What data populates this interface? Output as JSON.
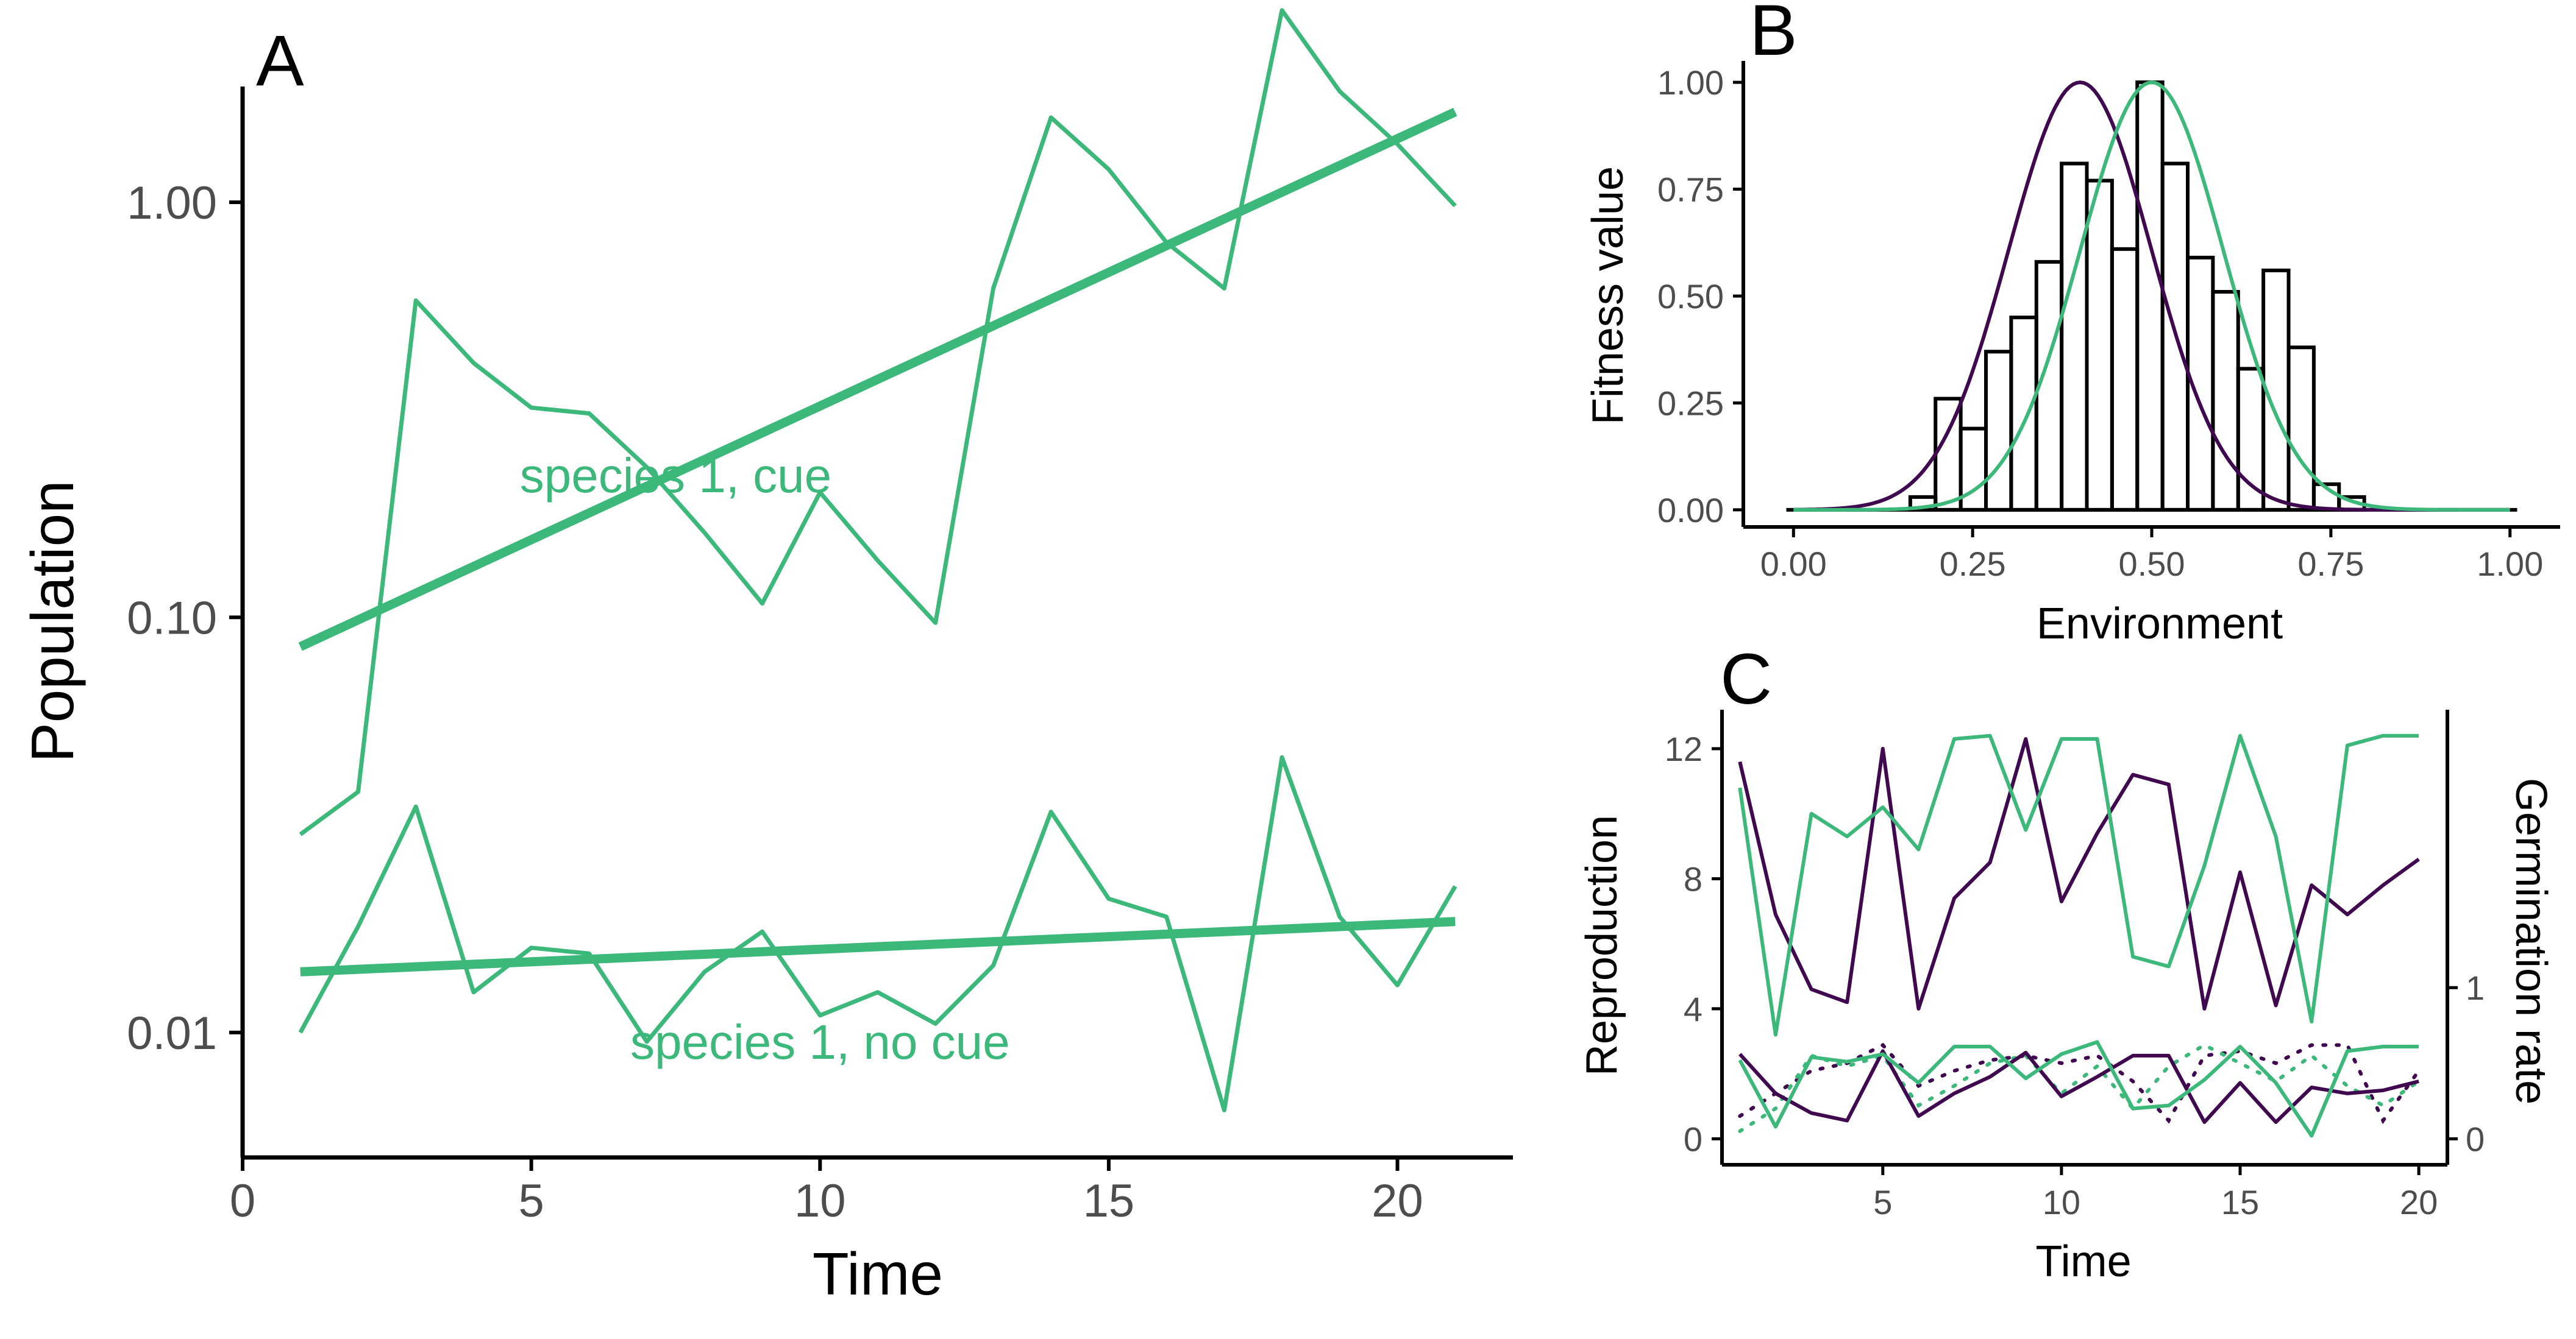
{
  "colors": {
    "species_1": "#3bb87a",
    "species_2": "#40094f",
    "axis": "#000000",
    "tick_label": "#4d4d4d"
  },
  "chart_data": [
    {
      "panel": "A",
      "type": "line",
      "yscale": "log10",
      "xlabel": "Time",
      "ylabel": "Population",
      "xlim": [
        0,
        22
      ],
      "ylim": [
        0.005,
        1.9
      ],
      "x_ticks": [
        0,
        5,
        10,
        15,
        20
      ],
      "x_tick_labels": [
        "0",
        "5",
        "10",
        "15",
        "20"
      ],
      "y_ticks": [
        0.01,
        0.1,
        1
      ],
      "y_tick_labels": [
        "0.01",
        "0.10",
        "1.00"
      ],
      "x": [
        1,
        2,
        3,
        4,
        5,
        6,
        7,
        8,
        9,
        10,
        11,
        12,
        13,
        14,
        15,
        16,
        17,
        18,
        19,
        20,
        21
      ],
      "series": [
        {
          "key": "cue",
          "label": "species 1, cue",
          "label_at": [
            7.5,
            0.22
          ],
          "values": [
            0.03,
            0.038,
            0.58,
            0.41,
            0.32,
            0.31,
            0.23,
            0.16,
            0.108,
            0.2,
            0.137,
            0.097,
            0.62,
            1.6,
            1.2,
            0.8,
            0.62,
            2.9,
            1.85,
            1.38,
            0.98
          ],
          "trend": [
            [
              1,
              0.085
            ],
            [
              21,
              1.65
            ]
          ]
        },
        {
          "key": "no_cue",
          "label": "species 1, no cue",
          "label_at": [
            10,
            0.0095
          ],
          "values": [
            0.01,
            0.018,
            0.035,
            0.0125,
            0.016,
            0.0155,
            0.0095,
            0.014,
            0.0175,
            0.011,
            0.0125,
            0.0105,
            0.0145,
            0.034,
            0.021,
            0.019,
            0.0065,
            0.046,
            0.019,
            0.013,
            0.0225
          ],
          "trend": [
            [
              1,
              0.014
            ],
            [
              21,
              0.0185
            ]
          ]
        }
      ]
    },
    {
      "panel": "B",
      "type": "histogram",
      "xlabel": "Environment",
      "ylabel": "Fitness value",
      "xlim": [
        -0.07,
        1.07
      ],
      "ylim": [
        -0.04,
        1.05
      ],
      "x_ticks": [
        0,
        0.25,
        0.5,
        0.75,
        1
      ],
      "x_tick_labels": [
        "0.00",
        "0.25",
        "0.50",
        "0.75",
        "1.00"
      ],
      "y_ticks": [
        0,
        0.25,
        0.5,
        0.75,
        1
      ],
      "y_tick_labels": [
        "0.00",
        "0.25",
        "0.50",
        "0.75",
        "1.00"
      ],
      "histogram": {
        "bin_start": 0.163,
        "bin_width": 0.0352,
        "heights": [
          0.03,
          0.26,
          0.19,
          0.37,
          0.45,
          0.58,
          0.81,
          0.77,
          0.61,
          1.0,
          0.81,
          0.59,
          0.51,
          0.33,
          0.56,
          0.38,
          0.06,
          0.03
        ],
        "baseline": [
          -0.01,
          1.01
        ]
      },
      "curves": [
        {
          "species": "species_2",
          "mean": 0.4,
          "sd": 0.1
        },
        {
          "species": "species_1",
          "mean": 0.5,
          "sd": 0.1
        }
      ]
    },
    {
      "panel": "C",
      "type": "line",
      "xlabel": "Time",
      "ylabel": "Reproduction",
      "y2label": "Germination rate",
      "xlim": [
        0.5,
        20.8
      ],
      "ylim": [
        -0.8,
        13.2
      ],
      "y2_per_y": 4.65,
      "x_ticks": [
        5,
        10,
        15,
        20
      ],
      "x_tick_labels": [
        "5",
        "10",
        "15",
        "20"
      ],
      "y_ticks": [
        0,
        4,
        8,
        12
      ],
      "y_tick_labels": [
        "0",
        "4",
        "8",
        "12"
      ],
      "y2_ticks": [
        0,
        1
      ],
      "y2_tick_labels": [
        "0",
        "1"
      ],
      "x": [
        1,
        2,
        3,
        4,
        5,
        6,
        7,
        8,
        9,
        10,
        11,
        12,
        13,
        14,
        15,
        16,
        17,
        18,
        19,
        20
      ],
      "reproduction": [
        {
          "species": "species_2",
          "values": [
            11.6,
            6.9,
            4.6,
            4.2,
            12.0,
            4.0,
            7.4,
            8.5,
            12.3,
            7.3,
            9.4,
            11.2,
            10.9,
            4.0,
            8.2,
            4.1,
            7.8,
            6.9,
            7.8,
            8.6
          ]
        },
        {
          "species": "species_1",
          "values": [
            10.8,
            3.2,
            10.0,
            9.3,
            10.2,
            8.9,
            12.3,
            12.4,
            9.5,
            12.3,
            12.3,
            5.6,
            5.3,
            8.4,
            12.4,
            9.3,
            3.6,
            12.1,
            12.4,
            12.4
          ]
        }
      ],
      "germination_solid": [
        {
          "species": "species_2",
          "values": [
            0.56,
            0.3,
            0.17,
            0.12,
            0.58,
            0.15,
            0.3,
            0.41,
            0.57,
            0.28,
            0.41,
            0.55,
            0.55,
            0.11,
            0.37,
            0.11,
            0.34,
            0.3,
            0.32,
            0.38
          ]
        },
        {
          "species": "species_1",
          "values": [
            0.52,
            0.08,
            0.54,
            0.51,
            0.56,
            0.37,
            0.61,
            0.61,
            0.4,
            0.56,
            0.64,
            0.2,
            0.22,
            0.39,
            0.61,
            0.37,
            0.02,
            0.58,
            0.61,
            0.61
          ]
        }
      ],
      "germination_dotted": [
        {
          "species": "species_2",
          "values": [
            0.15,
            0.3,
            0.45,
            0.5,
            0.62,
            0.35,
            0.45,
            0.52,
            0.55,
            0.5,
            0.55,
            0.38,
            0.12,
            0.55,
            0.58,
            0.5,
            0.62,
            0.62,
            0.12,
            0.45
          ]
        },
        {
          "species": "species_1",
          "values": [
            0.05,
            0.2,
            0.55,
            0.48,
            0.55,
            0.22,
            0.35,
            0.5,
            0.55,
            0.3,
            0.48,
            0.2,
            0.48,
            0.62,
            0.5,
            0.38,
            0.55,
            0.35,
            0.22,
            0.38
          ]
        }
      ]
    }
  ]
}
